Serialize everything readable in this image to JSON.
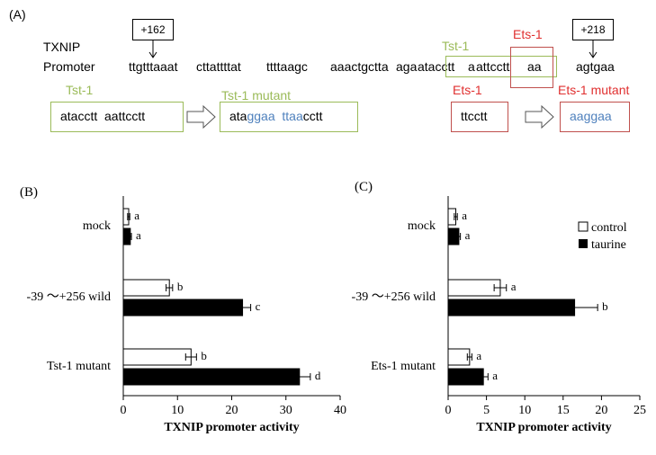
{
  "panel_a": {
    "label": "(A)",
    "gene": "TXNIP",
    "promoter_label": "Promoter",
    "pos_start": "+162",
    "pos_end": "+218",
    "seq_1": "ttgtttaaat",
    "seq_2": "cttattttat",
    "seq_3": "ttttaagc",
    "seq_4": "aaactgctta",
    "seq_5a": "aga",
    "seq_5b": "atacctt",
    "seq_6a": "a",
    "seq_6b": "attcctt",
    "seq_6c": "aa",
    "seq_7": "agtgaa",
    "tst_site_label": "Tst-1",
    "ets_site_label": "Ets-1",
    "tst_wt_label": "Tst-1",
    "tst_wt_seq": "atacctt  aattcctt",
    "tst_mut_label": "Tst-1 mutant",
    "tst_mut_1": "ata",
    "tst_mut_2": "ggaa",
    "tst_mut_3": "ttaa",
    "tst_mut_4": "cctt",
    "ets_wt_label": "Ets-1",
    "ets_wt_seq": "ttcctt",
    "ets_mut_label": "Ets-1 mutant",
    "ets_mut_seq": "aaggaa"
  },
  "legend": {
    "control": "control",
    "taurine": "taurine"
  },
  "colors": {
    "green": "#9bbb59",
    "red": "#e03030",
    "blue": "#4f81bd"
  },
  "chart_data": [
    {
      "panel": "(B)",
      "type": "bar",
      "orientation": "horizontal",
      "xlabel": "TXNIP promoter activity",
      "xlim": [
        0,
        40
      ],
      "xticks": [
        0,
        10,
        20,
        30,
        40
      ],
      "categories": [
        "mock",
        "-39 ～+256 wild",
        "Tst-1 mutant"
      ],
      "series": [
        {
          "name": "control",
          "values": [
            1.0,
            8.5,
            12.5
          ],
          "errors": [
            0.2,
            0.6,
            1.0
          ],
          "letters": [
            "a",
            "b",
            "b"
          ]
        },
        {
          "name": "taurine",
          "values": [
            1.3,
            22.0,
            32.5
          ],
          "errors": [
            0.2,
            1.5,
            2.0
          ],
          "letters": [
            "a",
            "c",
            "d"
          ]
        }
      ]
    },
    {
      "panel": "(C)",
      "type": "bar",
      "orientation": "horizontal",
      "xlabel": "TXNIP promoter activity",
      "xlim": [
        0,
        25
      ],
      "xticks": [
        0,
        5,
        10,
        15,
        20,
        25
      ],
      "categories": [
        "mock",
        "-39 ～+256 wild",
        "Ets-1 mutant"
      ],
      "series": [
        {
          "name": "control",
          "values": [
            1.0,
            6.8,
            2.8
          ],
          "errors": [
            0.2,
            0.8,
            0.3
          ],
          "letters": [
            "a",
            "a",
            "a"
          ]
        },
        {
          "name": "taurine",
          "values": [
            1.4,
            16.5,
            4.6
          ],
          "errors": [
            0.2,
            3.0,
            0.6
          ],
          "letters": [
            "a",
            "b",
            "a"
          ]
        }
      ]
    }
  ]
}
